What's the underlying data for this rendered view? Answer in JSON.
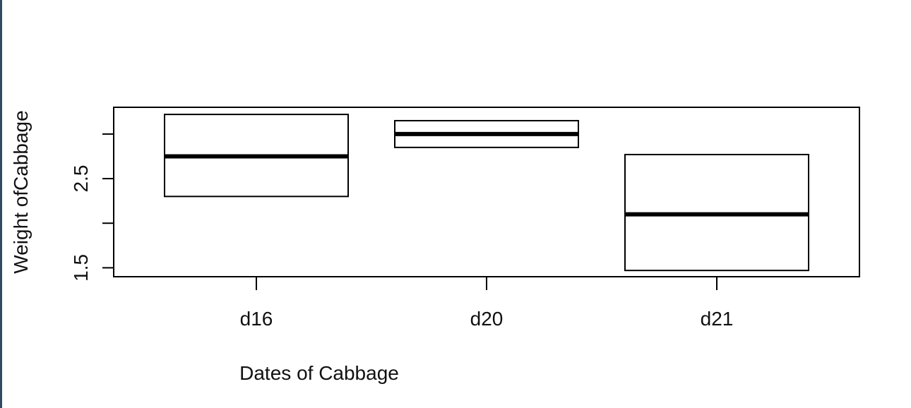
{
  "chart_data": {
    "type": "boxplot",
    "title": "",
    "xlabel": "Dates of Cabbage",
    "ylabel": "Weight ofCabbage",
    "categories": [
      "d16",
      "d20",
      "d21"
    ],
    "boxes": [
      {
        "category": "d16",
        "q1": 2.3,
        "median": 2.75,
        "q3": 3.22
      },
      {
        "category": "d20",
        "q1": 2.85,
        "median": 3.0,
        "q3": 3.15
      },
      {
        "category": "d21",
        "q1": 1.47,
        "median": 2.1,
        "q3": 2.77
      }
    ],
    "y_ticks": [
      1.5,
      2.0,
      2.5,
      3.0
    ],
    "y_tick_labels": [
      "1.5",
      "",
      "2.5",
      ""
    ],
    "ylim": [
      1.4,
      3.3
    ],
    "grid": false
  }
}
